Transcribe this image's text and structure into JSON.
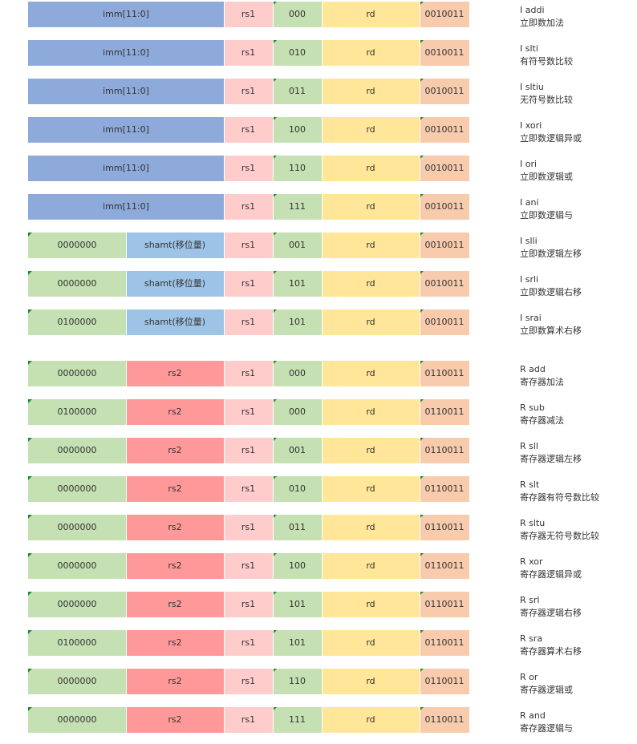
{
  "colors": {
    "imm": "#8eaadb",
    "rs1": "#ffcccc",
    "funct3": "#c5e0b3",
    "rd": "#ffe699",
    "opcode": "#f8cbad",
    "funct7": "#c5e0b3",
    "shamt": "#9dc3e6",
    "rs2": "#ff9999"
  },
  "rows": [
    {
      "kind": "imm",
      "cells": {
        "imm": "imm[11:0]",
        "rs1": "rs1",
        "funct3": "000",
        "rd": "rd",
        "opcode": "0010011"
      },
      "desc_name": "I addi",
      "desc_cn": "立即数加法"
    },
    {
      "kind": "imm",
      "cells": {
        "imm": "imm[11:0]",
        "rs1": "rs1",
        "funct3": "010",
        "rd": "rd",
        "opcode": "0010011"
      },
      "desc_name": "I slti",
      "desc_cn": "有符号数比较"
    },
    {
      "kind": "imm",
      "cells": {
        "imm": "imm[11:0]",
        "rs1": "rs1",
        "funct3": "011",
        "rd": "rd",
        "opcode": "0010011"
      },
      "desc_name": "I sltiu",
      "desc_cn": "无符号数比较"
    },
    {
      "kind": "imm",
      "cells": {
        "imm": "imm[11:0]",
        "rs1": "rs1",
        "funct3": "100",
        "rd": "rd",
        "opcode": "0010011"
      },
      "desc_name": "I xori",
      "desc_cn": "立即数逻辑异或"
    },
    {
      "kind": "imm",
      "cells": {
        "imm": "imm[11:0]",
        "rs1": "rs1",
        "funct3": "110",
        "rd": "rd",
        "opcode": "0010011"
      },
      "desc_name": "I ori",
      "desc_cn": "立即数逻辑或"
    },
    {
      "kind": "imm",
      "cells": {
        "imm": "imm[11:0]",
        "rs1": "rs1",
        "funct3": "111",
        "rd": "rd",
        "opcode": "0010011"
      },
      "desc_name": "I ani",
      "desc_cn": "立即数逻辑与"
    },
    {
      "kind": "shamt",
      "cells": {
        "funct7": "0000000",
        "shamt": "shamt(移位量)",
        "rs1": "rs1",
        "funct3": "001",
        "rd": "rd",
        "opcode": "0010011"
      },
      "desc_name": "I slli",
      "desc_cn": "立即数逻辑左移"
    },
    {
      "kind": "shamt",
      "cells": {
        "funct7": "0000000",
        "shamt": "shamt(移位量)",
        "rs1": "rs1",
        "funct3": "101",
        "rd": "rd",
        "opcode": "0010011"
      },
      "desc_name": "I srli",
      "desc_cn": "立即数逻辑右移"
    },
    {
      "kind": "shamt",
      "cells": {
        "funct7": "0100000",
        "shamt": "shamt(移位量)",
        "rs1": "rs1",
        "funct3": "101",
        "rd": "rd",
        "opcode": "0010011"
      },
      "desc_name": "I srai",
      "desc_cn": "立即数算术右移"
    },
    {
      "kind": "reg",
      "cells": {
        "funct7": "0000000",
        "rs2": "rs2",
        "rs1": "rs1",
        "funct3": "000",
        "rd": "rd",
        "opcode": "0110011"
      },
      "desc_name": "R add",
      "desc_cn": "寄存器加法"
    },
    {
      "kind": "reg",
      "cells": {
        "funct7": "0100000",
        "rs2": "rs2",
        "rs1": "rs1",
        "funct3": "000",
        "rd": "rd",
        "opcode": "0110011"
      },
      "desc_name": "R sub",
      "desc_cn": "寄存器减法"
    },
    {
      "kind": "reg",
      "cells": {
        "funct7": "0000000",
        "rs2": "rs2",
        "rs1": "rs1",
        "funct3": "001",
        "rd": "rd",
        "opcode": "0110011"
      },
      "desc_name": "R sll",
      "desc_cn": "寄存器逻辑左移"
    },
    {
      "kind": "reg",
      "cells": {
        "funct7": "0000000",
        "rs2": "rs2",
        "rs1": "rs1",
        "funct3": "010",
        "rd": "rd",
        "opcode": "0110011"
      },
      "desc_name": "R slt",
      "desc_cn": "寄存器有符号数比较"
    },
    {
      "kind": "reg",
      "cells": {
        "funct7": "0000000",
        "rs2": "rs2",
        "rs1": "rs1",
        "funct3": "011",
        "rd": "rd",
        "opcode": "0110011"
      },
      "desc_name": "R sltu",
      "desc_cn": "寄存器无符号数比较"
    },
    {
      "kind": "reg",
      "cells": {
        "funct7": "0000000",
        "rs2": "rs2",
        "rs1": "rs1",
        "funct3": "100",
        "rd": "rd",
        "opcode": "0110011"
      },
      "desc_name": "R xor",
      "desc_cn": "寄存器逻辑异或"
    },
    {
      "kind": "reg",
      "cells": {
        "funct7": "0000000",
        "rs2": "rs2",
        "rs1": "rs1",
        "funct3": "101",
        "rd": "rd",
        "opcode": "0110011"
      },
      "desc_name": "R srl",
      "desc_cn": "寄存器逻辑右移"
    },
    {
      "kind": "reg",
      "cells": {
        "funct7": "0100000",
        "rs2": "rs2",
        "rs1": "rs1",
        "funct3": "101",
        "rd": "rd",
        "opcode": "0110011"
      },
      "desc_name": "R sra",
      "desc_cn": "寄存器算术右移"
    },
    {
      "kind": "reg",
      "cells": {
        "funct7": "0000000",
        "rs2": "rs2",
        "rs1": "rs1",
        "funct3": "110",
        "rd": "rd",
        "opcode": "0110011"
      },
      "desc_name": "R or",
      "desc_cn": "寄存器逻辑或"
    },
    {
      "kind": "reg",
      "cells": {
        "funct7": "0000000",
        "rs2": "rs2",
        "rs1": "rs1",
        "funct3": "111",
        "rd": "rd",
        "opcode": "0110011"
      },
      "desc_name": "R and",
      "desc_cn": "寄存器逻辑与"
    }
  ]
}
